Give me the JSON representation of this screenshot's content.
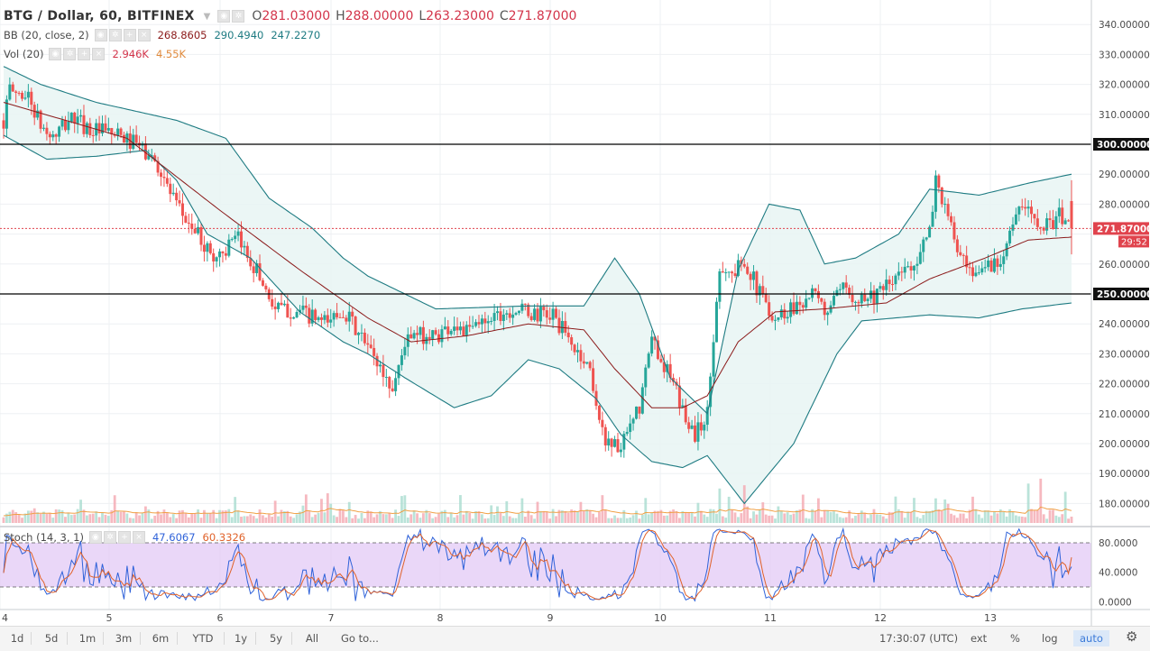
{
  "header": {
    "symbol": "BTG / Dollar, 60, BITFINEX",
    "open_label": "O",
    "open": "281.03000",
    "high_label": "H",
    "high": "288.00000",
    "low_label": "L",
    "low": "263.23000",
    "close_label": "C",
    "close": "271.87000"
  },
  "indicators": {
    "bb": {
      "name": "BB (20, close, 2)",
      "basis": "268.8605",
      "upper": "290.4940",
      "lower": "247.2270"
    },
    "vol": {
      "name": "Vol (20)",
      "value": "2.946K",
      "ma": "4.55K"
    },
    "stoch": {
      "name": "Stoch (14, 3, 1)",
      "k": "47.6067",
      "d": "60.3326"
    }
  },
  "price_axis": {
    "ticks": [
      "340.00000",
      "330.00000",
      "320.00000",
      "310.00000",
      "300.00000",
      "290.00000",
      "280.00000",
      "271.87000",
      "260.00000",
      "250.00000",
      "240.00000",
      "230.00000",
      "220.00000",
      "210.00000",
      "200.00000",
      "190.00000",
      "180.00000"
    ],
    "last_price": "271.87000",
    "countdown": "29:52",
    "hline_300": "300.00000",
    "hline_250": "250.00000"
  },
  "stoch_axis": {
    "ticks": [
      "80.0000",
      "40.0000",
      "0.0000"
    ]
  },
  "time_axis": {
    "labels": [
      "4",
      "5",
      "6",
      "7",
      "8",
      "9",
      "10",
      "11",
      "12",
      "13"
    ]
  },
  "bottom_bar": {
    "timeframes": [
      "1d",
      "5d",
      "1m",
      "3m",
      "6m",
      "YTD",
      "1y",
      "5y",
      "All"
    ],
    "goto": "Go to...",
    "clock": "17:30:07 (UTC)",
    "ext": "ext",
    "percent": "%",
    "log": "log",
    "auto": "auto",
    "gear_icon": "gear-icon"
  },
  "colors": {
    "up": "#26a69a",
    "down": "#ef5350",
    "bb_basis": "#8b1a1a",
    "bb_band": "#1e7b82",
    "bb_fill": "#e8f5f3",
    "stoch_k": "#2f62d9",
    "stoch_d": "#e0622a",
    "stoch_bg": "#e3c9f5",
    "vol_ma": "#f0a045",
    "last_price": "#e0434d"
  },
  "chart_data": {
    "type": "candlestick",
    "symbol": "BTG / Dollar",
    "interval": "60",
    "exchange": "BITFINEX",
    "x_axis_day_labels": [
      "4",
      "5",
      "6",
      "7",
      "8",
      "9",
      "10",
      "11",
      "12",
      "13"
    ],
    "ylim": [
      175,
      347
    ],
    "horizontal_lines": [
      300,
      250
    ],
    "last_price": 271.87,
    "ohlc_keyframes": [
      [
        0,
        308
      ],
      [
        2,
        318
      ],
      [
        8,
        316
      ],
      [
        12,
        306
      ],
      [
        16,
        302
      ],
      [
        22,
        309
      ],
      [
        28,
        305
      ],
      [
        36,
        303
      ],
      [
        43,
        300
      ],
      [
        50,
        293
      ],
      [
        56,
        279
      ],
      [
        62,
        271
      ],
      [
        68,
        262
      ],
      [
        76,
        268
      ],
      [
        82,
        258
      ],
      [
        88,
        245
      ],
      [
        96,
        244
      ],
      [
        104,
        240
      ],
      [
        110,
        245
      ],
      [
        114,
        238
      ],
      [
        120,
        229
      ],
      [
        126,
        218
      ],
      [
        130,
        234
      ],
      [
        134,
        236
      ],
      [
        140,
        236
      ],
      [
        146,
        240
      ],
      [
        150,
        237
      ],
      [
        158,
        243
      ],
      [
        166,
        245
      ],
      [
        172,
        243
      ],
      [
        178,
        243
      ],
      [
        184,
        233
      ],
      [
        190,
        225
      ],
      [
        194,
        203
      ],
      [
        200,
        198
      ],
      [
        206,
        212
      ],
      [
        210,
        235
      ],
      [
        216,
        222
      ],
      [
        220,
        211
      ],
      [
        224,
        203
      ],
      [
        228,
        210
      ],
      [
        232,
        260
      ],
      [
        236,
        256
      ],
      [
        240,
        262
      ],
      [
        244,
        252
      ],
      [
        250,
        242
      ],
      [
        256,
        246
      ],
      [
        262,
        250
      ],
      [
        266,
        244
      ],
      [
        272,
        251
      ],
      [
        278,
        249
      ],
      [
        284,
        250
      ],
      [
        290,
        256
      ],
      [
        296,
        262
      ],
      [
        300,
        270
      ],
      [
        302,
        289
      ],
      [
        306,
        275
      ],
      [
        310,
        262
      ],
      [
        314,
        254
      ],
      [
        318,
        260
      ],
      [
        322,
        260
      ],
      [
        326,
        271
      ],
      [
        330,
        279
      ],
      [
        334,
        276
      ],
      [
        338,
        273
      ],
      [
        342,
        276
      ],
      [
        346,
        272
      ]
    ],
    "bollinger": {
      "basis": [
        [
          0,
          314
        ],
        [
          40,
          302
        ],
        [
          70,
          278
        ],
        [
          96,
          258
        ],
        [
          118,
          242
        ],
        [
          132,
          234
        ],
        [
          150,
          236
        ],
        [
          170,
          240
        ],
        [
          188,
          238
        ],
        [
          198,
          225
        ],
        [
          210,
          212
        ],
        [
          220,
          212
        ],
        [
          228,
          216
        ],
        [
          238,
          234
        ],
        [
          250,
          244
        ],
        [
          266,
          245
        ],
        [
          286,
          247
        ],
        [
          300,
          255
        ],
        [
          318,
          262
        ],
        [
          332,
          268
        ],
        [
          346,
          269
        ]
      ],
      "upper": [
        [
          0,
          326
        ],
        [
          12,
          320
        ],
        [
          30,
          314
        ],
        [
          56,
          308
        ],
        [
          72,
          302
        ],
        [
          86,
          282
        ],
        [
          100,
          272
        ],
        [
          110,
          262
        ],
        [
          118,
          256
        ],
        [
          140,
          245
        ],
        [
          170,
          246
        ],
        [
          188,
          246
        ],
        [
          198,
          262
        ],
        [
          206,
          250
        ],
        [
          216,
          222
        ],
        [
          228,
          210
        ],
        [
          238,
          258
        ],
        [
          248,
          280
        ],
        [
          258,
          278
        ],
        [
          266,
          260
        ],
        [
          276,
          262
        ],
        [
          290,
          270
        ],
        [
          300,
          285
        ],
        [
          316,
          283
        ],
        [
          332,
          287
        ],
        [
          346,
          290
        ]
      ],
      "lower": [
        [
          0,
          303
        ],
        [
          14,
          295
        ],
        [
          30,
          296
        ],
        [
          46,
          298
        ],
        [
          56,
          288
        ],
        [
          66,
          270
        ],
        [
          80,
          262
        ],
        [
          96,
          244
        ],
        [
          110,
          234
        ],
        [
          118,
          230
        ],
        [
          130,
          222
        ],
        [
          146,
          212
        ],
        [
          158,
          216
        ],
        [
          170,
          228
        ],
        [
          180,
          225
        ],
        [
          192,
          215
        ],
        [
          200,
          203
        ],
        [
          210,
          194
        ],
        [
          220,
          192
        ],
        [
          228,
          196
        ],
        [
          240,
          180
        ],
        [
          256,
          200
        ],
        [
          270,
          230
        ],
        [
          278,
          241
        ],
        [
          300,
          243
        ],
        [
          316,
          242
        ],
        [
          330,
          245
        ],
        [
          346,
          247
        ]
      ]
    },
    "volume": {
      "unit": "BTG",
      "last": 2946,
      "ma20": 4550,
      "spikes_keyframes": [
        [
          148,
          17000
        ],
        [
          232,
          21000
        ],
        [
          240,
          23000
        ],
        [
          302,
          15000
        ],
        [
          314,
          16000
        ],
        [
          332,
          24000
        ],
        [
          336,
          27000
        ],
        [
          344,
          19000
        ]
      ]
    },
    "stochastic": {
      "params": [
        14,
        3,
        1
      ],
      "k_last": 47.6067,
      "d_last": 60.3326,
      "overbought": 80,
      "oversold": 20,
      "ylim": [
        -5,
        95
      ],
      "ticks": [
        80,
        40,
        0
      ]
    }
  }
}
